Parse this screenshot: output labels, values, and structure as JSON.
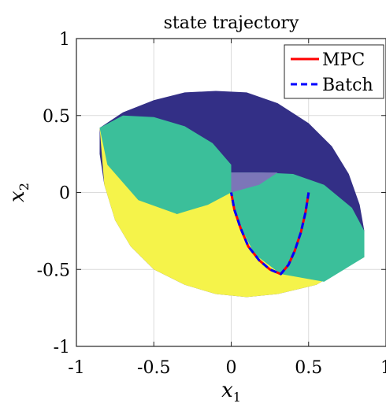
{
  "chart_data": {
    "type": "line",
    "title": "state trajectory",
    "xlabel": "x",
    "xlabel_sub": "1",
    "ylabel": "x",
    "ylabel_sub": "2",
    "xlim": [
      -1,
      1
    ],
    "ylim": [
      -1,
      1
    ],
    "xticks": [
      -1,
      -0.5,
      0,
      0.5,
      1
    ],
    "yticks": [
      -1,
      -0.5,
      0,
      0.5,
      1
    ],
    "xtick_labels": [
      "-1",
      "-0.5",
      "0",
      "0.5",
      "1"
    ],
    "ytick_labels": [
      "-1",
      "-0.5",
      "0",
      "0.5",
      "1"
    ],
    "grid": true,
    "legend_position": "top-right",
    "regions": [
      {
        "name": "outer-region",
        "color": "#332f86",
        "points": [
          [
            -0.85,
            0.42
          ],
          [
            -0.7,
            0.52
          ],
          [
            -0.5,
            0.6
          ],
          [
            -0.3,
            0.65
          ],
          [
            -0.1,
            0.66
          ],
          [
            0.1,
            0.65
          ],
          [
            0.3,
            0.58
          ],
          [
            0.5,
            0.45
          ],
          [
            0.65,
            0.3
          ],
          [
            0.76,
            0.12
          ],
          [
            0.83,
            -0.08
          ],
          [
            0.86,
            -0.25
          ],
          [
            0.86,
            -0.42
          ],
          [
            0.55,
            -0.6
          ],
          [
            0.3,
            -0.66
          ],
          [
            0.1,
            -0.68
          ],
          [
            -0.1,
            -0.66
          ],
          [
            -0.3,
            -0.6
          ],
          [
            -0.5,
            -0.5
          ],
          [
            -0.65,
            -0.35
          ],
          [
            -0.75,
            -0.18
          ],
          [
            -0.82,
            0.05
          ],
          [
            -0.85,
            0.25
          ],
          [
            -0.85,
            0.42
          ]
        ]
      },
      {
        "name": "lower-left-yellow-region",
        "color": "#f5f34a",
        "points": [
          [
            -0.85,
            0.42
          ],
          [
            -0.82,
            0.05
          ],
          [
            -0.75,
            -0.18
          ],
          [
            -0.65,
            -0.35
          ],
          [
            -0.5,
            -0.5
          ],
          [
            -0.3,
            -0.6
          ],
          [
            -0.1,
            -0.66
          ],
          [
            0.1,
            -0.68
          ],
          [
            0.3,
            -0.66
          ],
          [
            0.55,
            -0.6
          ],
          [
            0.86,
            -0.42
          ],
          [
            0.25,
            -0.2
          ],
          [
            0.0,
            0.0
          ],
          [
            -0.35,
            -0.14
          ],
          [
            -0.6,
            0.0
          ],
          [
            -0.85,
            0.42
          ]
        ]
      },
      {
        "name": "upper-left-teal-region",
        "color": "#3bbf9a",
        "points": [
          [
            -0.85,
            0.42
          ],
          [
            -0.7,
            0.5
          ],
          [
            -0.5,
            0.49
          ],
          [
            -0.3,
            0.43
          ],
          [
            -0.12,
            0.32
          ],
          [
            0.0,
            0.18
          ],
          [
            0.0,
            0.0
          ],
          [
            -0.15,
            -0.08
          ],
          [
            -0.35,
            -0.14
          ],
          [
            -0.6,
            -0.05
          ],
          [
            -0.8,
            0.18
          ],
          [
            -0.85,
            0.42
          ]
        ]
      },
      {
        "name": "lower-right-teal-region",
        "color": "#3bbf9a",
        "points": [
          [
            0.0,
            0.0
          ],
          [
            0.0,
            0.13
          ],
          [
            0.2,
            0.13
          ],
          [
            0.4,
            0.12
          ],
          [
            0.6,
            0.05
          ],
          [
            0.78,
            -0.1
          ],
          [
            0.86,
            -0.25
          ],
          [
            0.86,
            -0.42
          ],
          [
            0.6,
            -0.58
          ],
          [
            0.32,
            -0.53
          ],
          [
            0.15,
            -0.4
          ],
          [
            0.05,
            -0.2
          ],
          [
            0.0,
            0.0
          ]
        ]
      },
      {
        "name": "center-overlap-region",
        "color": "#7c76b8",
        "points": [
          [
            0.0,
            0.0
          ],
          [
            0.0,
            0.13
          ],
          [
            0.3,
            0.13
          ],
          [
            0.18,
            0.05
          ],
          [
            0.0,
            0.0
          ]
        ]
      }
    ],
    "series": [
      {
        "name": "MPC",
        "color": "#ff0000",
        "style": "solid",
        "x": [
          0.5,
          0.48,
          0.45,
          0.41,
          0.37,
          0.32,
          0.25,
          0.18,
          0.11,
          0.06,
          0.02,
          0.0
        ],
        "y": [
          0.0,
          -0.13,
          -0.26,
          -0.38,
          -0.47,
          -0.53,
          -0.5,
          -0.44,
          -0.35,
          -0.23,
          -0.11,
          0.0
        ]
      },
      {
        "name": "Batch",
        "color": "#0000ff",
        "style": "dashed",
        "x": [
          0.5,
          0.48,
          0.45,
          0.41,
          0.37,
          0.32,
          0.25,
          0.18,
          0.11,
          0.06,
          0.02,
          0.0
        ],
        "y": [
          0.0,
          -0.13,
          -0.26,
          -0.38,
          -0.47,
          -0.53,
          -0.5,
          -0.44,
          -0.35,
          -0.23,
          -0.11,
          0.0
        ]
      }
    ]
  }
}
